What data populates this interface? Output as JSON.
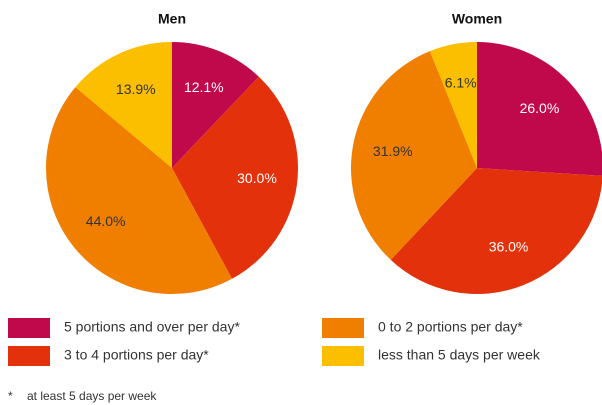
{
  "categories": [
    "5 portions and over per day*",
    "3 to 4 portions per day*",
    "0 to 2 portions per day*",
    "less than 5 days per week"
  ],
  "colors": [
    "#c0094a",
    "#e3320b",
    "#f07f00",
    "#fbbf00"
  ],
  "label_colors": [
    "#ffffff",
    "#ffffff",
    "#333333",
    "#333333"
  ],
  "chart_data": [
    {
      "type": "pie",
      "title": "Men",
      "values": [
        12.1,
        30.0,
        44.0,
        13.9
      ],
      "value_labels": [
        "12.1%",
        "30.0%",
        "44.0%",
        "13.9%"
      ]
    },
    {
      "type": "pie",
      "title": "Women",
      "values": [
        26.0,
        36.0,
        31.9,
        6.1
      ],
      "value_labels": [
        "26.0%",
        "36.0%",
        "31.9%",
        "6.1%"
      ]
    }
  ],
  "footnote": {
    "marker": "*",
    "text": "at least 5 days per week"
  }
}
